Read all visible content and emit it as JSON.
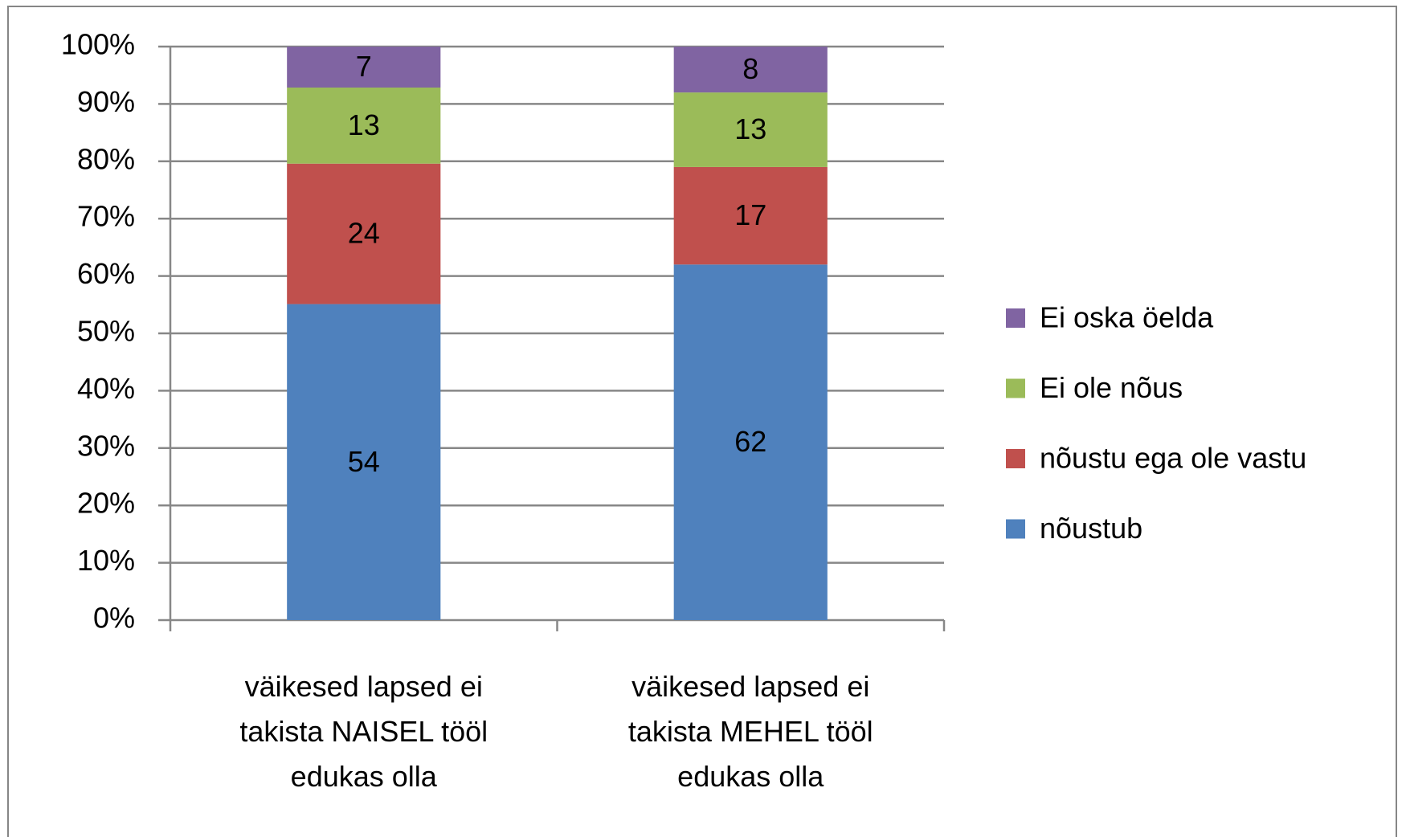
{
  "chart_data": {
    "type": "bar",
    "stacking": "percent",
    "categories": [
      "väikesed lapsed ei takista NAISEL tööl edukas olla",
      "väikesed lapsed ei takista MEHEL tööl edukas olla"
    ],
    "series": [
      {
        "name": "nõustub",
        "color": "#4f81bd",
        "values": [
          54,
          62
        ]
      },
      {
        "name": "nõustu ega ole vastu",
        "color": "#c0504d",
        "values": [
          24,
          17
        ]
      },
      {
        "name": "Ei ole nõus",
        "color": "#9bbb59",
        "values": [
          13,
          13
        ]
      },
      {
        "name": "Ei oska öelda",
        "color": "#8064a2",
        "values": [
          7,
          8
        ]
      }
    ],
    "ylim": [
      0,
      100
    ],
    "yticks": [
      {
        "value": 0,
        "label": "0%"
      },
      {
        "value": 10,
        "label": "10%"
      },
      {
        "value": 20,
        "label": "20%"
      },
      {
        "value": 30,
        "label": "30%"
      },
      {
        "value": 40,
        "label": "40%"
      },
      {
        "value": 50,
        "label": "50%"
      },
      {
        "value": 60,
        "label": "60%"
      },
      {
        "value": 70,
        "label": "70%"
      },
      {
        "value": 80,
        "label": "80%"
      },
      {
        "value": 90,
        "label": "90%"
      },
      {
        "value": 100,
        "label": "100%"
      }
    ],
    "grid": true,
    "legend": "right"
  }
}
